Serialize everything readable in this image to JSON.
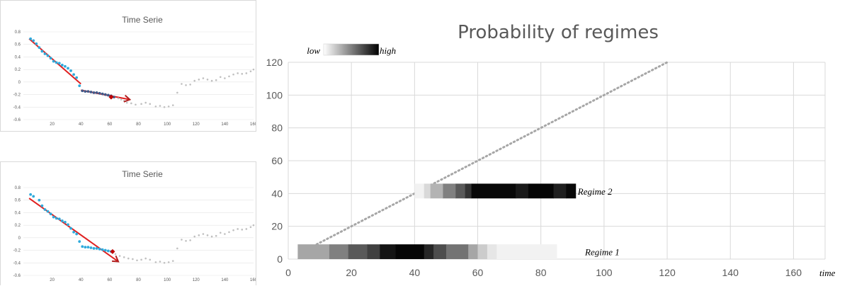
{
  "chart_data": [
    {
      "type": "scatter",
      "title": "Time Serie",
      "xlim": [
        0,
        160
      ],
      "ylim": [
        -0.6,
        0.8
      ],
      "x_ticks": [
        "20",
        "40",
        "60",
        "80",
        "100",
        "120",
        "140",
        "160"
      ],
      "y_ticks": [
        "0.8",
        "0.6",
        "0.4",
        "0.2",
        "0",
        "-0.2",
        "-0.4",
        "-0.6"
      ],
      "series": [
        {
          "color": "#c0c0c0",
          "points": [
            [
              66,
              -0.26
            ],
            [
              68,
              -0.28
            ],
            [
              70,
              -0.3
            ],
            [
              72,
              -0.33
            ],
            [
              75,
              -0.34
            ],
            [
              78,
              -0.36
            ],
            [
              82,
              -0.35
            ],
            [
              85,
              -0.33
            ],
            [
              88,
              -0.35
            ],
            [
              92,
              -0.39
            ],
            [
              95,
              -0.38
            ],
            [
              98,
              -0.4
            ],
            [
              101,
              -0.39
            ],
            [
              104,
              -0.37
            ],
            [
              107,
              -0.17
            ],
            [
              110,
              -0.03
            ],
            [
              113,
              -0.05
            ],
            [
              116,
              -0.04
            ],
            [
              119,
              0.02
            ],
            [
              122,
              0.04
            ],
            [
              125,
              0.06
            ],
            [
              128,
              0.04
            ],
            [
              131,
              0.02
            ],
            [
              134,
              0.03
            ],
            [
              137,
              0.08
            ],
            [
              140,
              0.06
            ],
            [
              143,
              0.09
            ],
            [
              146,
              0.12
            ],
            [
              149,
              0.14
            ],
            [
              152,
              0.13
            ],
            [
              155,
              0.14
            ],
            [
              158,
              0.17
            ],
            [
              160,
              0.2
            ]
          ]
        },
        {
          "color": "#2eaadc",
          "points": [
            [
              5,
              0.69
            ],
            [
              7,
              0.66
            ],
            [
              9,
              0.61
            ],
            [
              11,
              0.55
            ],
            [
              13,
              0.49
            ],
            [
              15,
              0.45
            ],
            [
              17,
              0.42
            ],
            [
              19,
              0.38
            ],
            [
              21,
              0.33
            ],
            [
              23,
              0.31
            ],
            [
              25,
              0.3
            ],
            [
              27,
              0.27
            ],
            [
              29,
              0.25
            ],
            [
              31,
              0.22
            ],
            [
              33,
              0.18
            ],
            [
              35,
              0.12
            ],
            [
              37,
              0.07
            ],
            [
              39,
              -0.06
            ]
          ]
        },
        {
          "color": "#3f5a8a",
          "points": [
            [
              41,
              -0.14
            ],
            [
              43,
              -0.15
            ],
            [
              45,
              -0.15
            ],
            [
              47,
              -0.16
            ],
            [
              49,
              -0.17
            ],
            [
              51,
              -0.17
            ],
            [
              53,
              -0.18
            ],
            [
              55,
              -0.19
            ],
            [
              57,
              -0.2
            ],
            [
              59,
              -0.21
            ],
            [
              61,
              -0.22
            ],
            [
              63,
              -0.24
            ]
          ]
        }
      ],
      "fit_lines": [
        {
          "color": "#e02020",
          "from": [
            4,
            0.69
          ],
          "to": [
            40,
            -0.03
          ]
        },
        {
          "color": "#e02020",
          "from": [
            40,
            -0.13
          ],
          "to": [
            74,
            -0.28
          ]
        }
      ],
      "marker": {
        "color": "#c00000",
        "x": 61,
        "y": -0.24
      }
    },
    {
      "type": "scatter",
      "title": "Time Serie",
      "xlim": [
        0,
        160
      ],
      "ylim": [
        -0.6,
        0.8
      ],
      "x_ticks": [
        "20",
        "40",
        "60",
        "80",
        "100",
        "120",
        "140",
        "160"
      ],
      "y_ticks": [
        "0.8",
        "0.6",
        "0.4",
        "0.2",
        "0",
        "-0.2",
        "-0.4",
        "-0.6"
      ],
      "series": [
        {
          "color": "#c0c0c0",
          "points": [
            [
              64,
              -0.26
            ],
            [
              67,
              -0.29
            ],
            [
              70,
              -0.31
            ],
            [
              73,
              -0.33
            ],
            [
              76,
              -0.34
            ],
            [
              79,
              -0.36
            ],
            [
              82,
              -0.35
            ],
            [
              85,
              -0.33
            ],
            [
              88,
              -0.35
            ],
            [
              92,
              -0.39
            ],
            [
              95,
              -0.38
            ],
            [
              98,
              -0.4
            ],
            [
              101,
              -0.39
            ],
            [
              104,
              -0.37
            ],
            [
              107,
              -0.17
            ],
            [
              110,
              -0.03
            ],
            [
              113,
              -0.05
            ],
            [
              116,
              -0.04
            ],
            [
              119,
              0.02
            ],
            [
              122,
              0.04
            ],
            [
              125,
              0.06
            ],
            [
              128,
              0.04
            ],
            [
              131,
              0.02
            ],
            [
              134,
              0.03
            ],
            [
              137,
              0.08
            ],
            [
              140,
              0.06
            ],
            [
              143,
              0.09
            ],
            [
              146,
              0.12
            ],
            [
              149,
              0.14
            ],
            [
              152,
              0.13
            ],
            [
              155,
              0.14
            ],
            [
              158,
              0.17
            ],
            [
              160,
              0.2
            ]
          ]
        },
        {
          "color": "#2eaadc",
          "points": [
            [
              5,
              0.69
            ],
            [
              7,
              0.66
            ],
            [
              11,
              0.6
            ],
            [
              13,
              0.51
            ],
            [
              15,
              0.45
            ],
            [
              17,
              0.42
            ],
            [
              19,
              0.38
            ],
            [
              21,
              0.33
            ],
            [
              23,
              0.31
            ],
            [
              25,
              0.3
            ],
            [
              27,
              0.27
            ],
            [
              29,
              0.25
            ],
            [
              31,
              0.21
            ],
            [
              33,
              0.15
            ],
            [
              35,
              0.09
            ],
            [
              37,
              0.06
            ],
            [
              39,
              -0.06
            ],
            [
              41,
              -0.14
            ],
            [
              43,
              -0.15
            ],
            [
              45,
              -0.15
            ],
            [
              47,
              -0.16
            ],
            [
              49,
              -0.17
            ],
            [
              51,
              -0.17
            ],
            [
              53,
              -0.18
            ],
            [
              55,
              -0.19
            ],
            [
              57,
              -0.2
            ],
            [
              59,
              -0.21
            ],
            [
              61,
              -0.22
            ]
          ]
        }
      ],
      "fit_lines": [
        {
          "color": "#e02020",
          "from": [
            4,
            0.63
          ],
          "to": [
            66,
            -0.38
          ]
        }
      ],
      "marker": {
        "color": "#c00000",
        "x": 62,
        "y": -0.22
      }
    },
    {
      "type": "heatmap",
      "title": "Probability of regimes",
      "xlim": [
        0,
        170
      ],
      "ylim": [
        0,
        120
      ],
      "x_ticks": [
        "0",
        "20",
        "40",
        "60",
        "80",
        "100",
        "120",
        "140",
        "160"
      ],
      "y_ticks": [
        "0",
        "20",
        "40",
        "60",
        "80",
        "100",
        "120"
      ],
      "x_axis_label": "time",
      "legend": {
        "low": "low",
        "high": "high"
      },
      "diagonal": {
        "color": "#a6a6a6",
        "from": [
          9,
          9
        ],
        "to": [
          120,
          120
        ]
      },
      "regimes": [
        {
          "label": "Regime 1",
          "y_center": 4.5,
          "height": 9,
          "segments": [
            {
              "x0": 3,
              "x1": 13,
              "p": 0.35
            },
            {
              "x0": 13,
              "x1": 19,
              "p": 0.5
            },
            {
              "x0": 19,
              "x1": 25,
              "p": 0.65
            },
            {
              "x0": 25,
              "x1": 29,
              "p": 0.75
            },
            {
              "x0": 29,
              "x1": 34,
              "p": 0.92
            },
            {
              "x0": 34,
              "x1": 43,
              "p": 0.98
            },
            {
              "x0": 43,
              "x1": 46,
              "p": 0.85
            },
            {
              "x0": 46,
              "x1": 50,
              "p": 0.7
            },
            {
              "x0": 50,
              "x1": 57,
              "p": 0.55
            },
            {
              "x0": 57,
              "x1": 60,
              "p": 0.35
            },
            {
              "x0": 60,
              "x1": 63,
              "p": 0.2
            },
            {
              "x0": 63,
              "x1": 66,
              "p": 0.1
            },
            {
              "x0": 66,
              "x1": 85,
              "p": 0.05
            }
          ]
        },
        {
          "label": "Regime 2",
          "y_center": 41.5,
          "height": 9,
          "segments": [
            {
              "x0": 40,
              "x1": 43,
              "p": 0.05
            },
            {
              "x0": 43,
              "x1": 45,
              "p": 0.15
            },
            {
              "x0": 45,
              "x1": 49,
              "p": 0.3
            },
            {
              "x0": 49,
              "x1": 53,
              "p": 0.5
            },
            {
              "x0": 53,
              "x1": 56,
              "p": 0.65
            },
            {
              "x0": 56,
              "x1": 58,
              "p": 0.8
            },
            {
              "x0": 58,
              "x1": 72,
              "p": 0.97
            },
            {
              "x0": 72,
              "x1": 76,
              "p": 0.9
            },
            {
              "x0": 76,
              "x1": 84,
              "p": 0.98
            },
            {
              "x0": 84,
              "x1": 88,
              "p": 0.88
            },
            {
              "x0": 88,
              "x1": 91,
              "p": 0.97
            }
          ]
        }
      ]
    }
  ]
}
